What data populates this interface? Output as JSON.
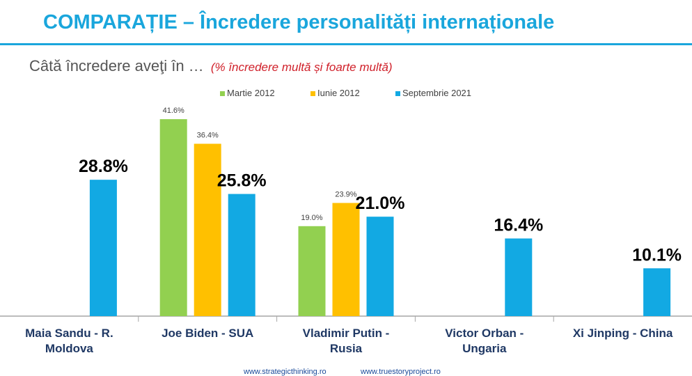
{
  "header": {
    "title": "COMPARAȚIE – Încredere personalități internaționale",
    "subtitle": "Câtă încredere aveţi în …",
    "subtitle_note": "(% încredere multă și foarte multă)"
  },
  "footer": {
    "link1": "www.strategicthinking.ro",
    "link2": "www.truestoryproject.ro"
  },
  "chart_data": {
    "type": "bar",
    "title": "",
    "xlabel": "",
    "ylabel": "",
    "ylim": [
      0,
      50
    ],
    "grid": false,
    "legend_position": "top-center",
    "categories": [
      [
        "Maia Sandu - R.",
        "Moldova"
      ],
      [
        "Joe Biden   -   SUA"
      ],
      [
        "Vladimir Putin -",
        "Rusia"
      ],
      [
        "Victor Orban -",
        "Ungaria"
      ],
      [
        "Xi Jinping - China"
      ]
    ],
    "series": [
      {
        "name": "Martie 2012",
        "color": "#92d050",
        "values": [
          null,
          41.6,
          19.0,
          null,
          null
        ],
        "labels": [
          null,
          "41.6%",
          "19.0%",
          null,
          null
        ]
      },
      {
        "name": "Iunie 2012",
        "color": "#ffc000",
        "values": [
          null,
          36.4,
          23.9,
          null,
          null
        ],
        "labels": [
          null,
          "36.4%",
          "23.9%",
          null,
          null
        ]
      },
      {
        "name": "Septembrie 2021",
        "color": "#12a9e3",
        "values": [
          28.8,
          25.8,
          21.0,
          16.4,
          10.1
        ],
        "labels": [
          "28.8%",
          "25.8%",
          "21.0%",
          "16.4%",
          "10.1%"
        ]
      }
    ]
  }
}
